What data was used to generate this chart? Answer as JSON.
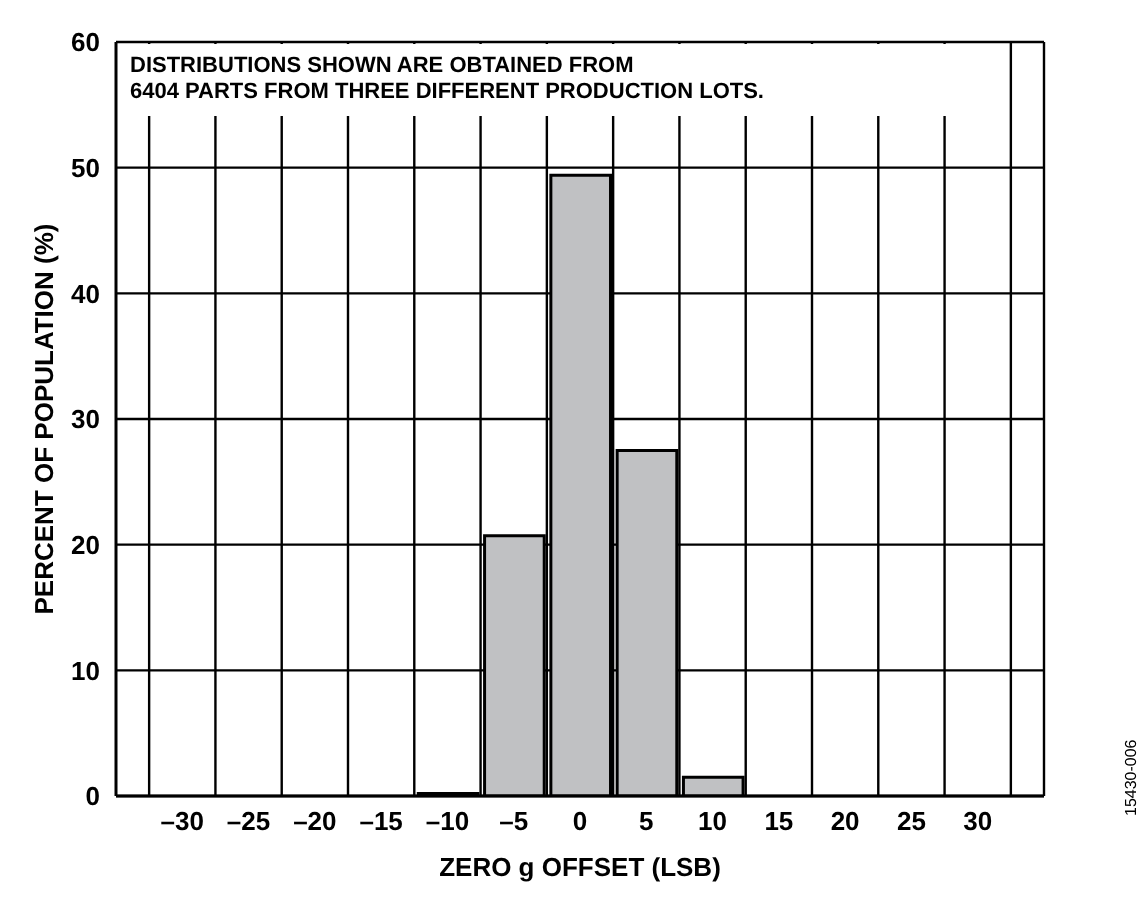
{
  "chart_data": {
    "type": "histogram",
    "xlabel": "ZERO g OFFSET (LSB)",
    "ylabel": "PERCENT OF POPULATION (%)",
    "annotations": [
      "DISTRIBUTIONS SHOWN ARE OBTAINED FROM\n6404 PARTS FROM THREE DIFFERENT PRODUCTION LOTS.",
      "15430-006"
    ],
    "bins": [
      -12.5,
      -7.5,
      -2.5,
      2.5,
      7.5,
      12.5,
      17.5
    ],
    "values": [
      0.2,
      20.7,
      49.4,
      27.5,
      1.5,
      null
    ],
    "color": "#c0c1c3",
    "xlim": [
      -35,
      35
    ],
    "xticks": [
      {
        "value": -30,
        "label": "–30"
      },
      {
        "value": -25,
        "label": "–25"
      },
      {
        "value": -20,
        "label": "–20"
      },
      {
        "value": -15,
        "label": "–15"
      },
      {
        "value": -10,
        "label": "–10"
      },
      {
        "value": -5,
        "label": "–5"
      },
      0,
      5,
      10,
      15,
      20,
      25,
      30,
      {
        "value": -32.5,
        "label": null
      },
      {
        "value": -27.5,
        "label": null
      },
      {
        "value": -22.5,
        "label": null
      },
      {
        "value": -17.5,
        "label": null
      },
      {
        "value": -12.5,
        "label": null
      },
      {
        "value": -7.5,
        "label": null
      },
      {
        "value": -2.5,
        "label": null
      },
      {
        "value": 2.5,
        "label": null
      },
      {
        "value": 7.5,
        "label": null
      },
      {
        "value": 12.5,
        "label": null
      },
      {
        "value": 17.5,
        "label": null
      },
      {
        "value": 22.5,
        "label": null
      },
      {
        "value": 27.5,
        "label": null
      },
      {
        "value": 32.5,
        "label": null
      }
    ],
    "ylim": [
      0,
      60
    ],
    "yticks": [
      0,
      10,
      20,
      30,
      40,
      50,
      60
    ],
    "grid": true
  }
}
